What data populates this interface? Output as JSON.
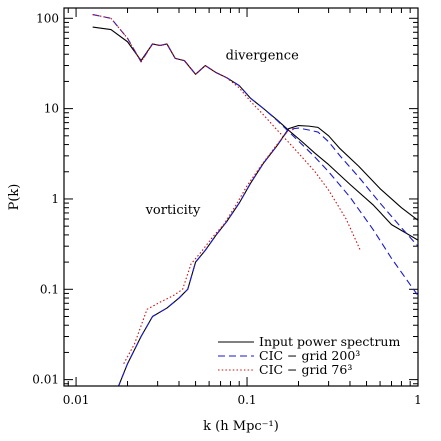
{
  "chart_data": {
    "type": "line",
    "title": "",
    "xlabel": "k (h Mpc⁻¹)",
    "ylabel": "P(k)",
    "x_scale": "log",
    "y_scale": "log",
    "xlim": [
      0.0085,
      1.0
    ],
    "ylim": [
      0.0085,
      130
    ],
    "x_ticks": [
      {
        "value": 0.01,
        "label": "0.01"
      },
      {
        "value": 0.1,
        "label": "0.1"
      },
      {
        "value": 1,
        "label": "1"
      }
    ],
    "y_ticks": [
      {
        "value": 0.01,
        "label": "0.01"
      },
      {
        "value": 0.1,
        "label": "0.1"
      },
      {
        "value": 1,
        "label": "1"
      },
      {
        "value": 10,
        "label": "10"
      },
      {
        "value": 100,
        "label": "100"
      }
    ],
    "grid": false,
    "legend_position": "bottom-right",
    "annotations": [
      {
        "text": "divergence",
        "x": 0.075,
        "y": 35
      },
      {
        "text": "vorticity",
        "x": 0.0255,
        "y": 0.68
      }
    ],
    "series": [
      {
        "name": "Input power spectrum",
        "component": "divergence",
        "color": "#000000",
        "dash": "solid",
        "points": [
          [
            0.0125,
            80
          ],
          [
            0.016,
            75
          ],
          [
            0.02,
            55
          ],
          [
            0.024,
            34
          ],
          [
            0.028,
            52
          ],
          [
            0.031,
            50
          ],
          [
            0.034,
            52
          ],
          [
            0.038,
            36
          ],
          [
            0.043,
            34
          ],
          [
            0.05,
            24
          ],
          [
            0.057,
            30
          ],
          [
            0.066,
            25
          ],
          [
            0.076,
            22
          ],
          [
            0.09,
            18
          ],
          [
            0.105,
            13
          ],
          [
            0.125,
            10
          ],
          [
            0.15,
            7.5
          ],
          [
            0.18,
            5.5
          ],
          [
            0.21,
            4.3
          ],
          [
            0.25,
            3.2
          ],
          [
            0.3,
            2.4
          ],
          [
            0.4,
            1.45
          ],
          [
            0.55,
            0.85
          ],
          [
            0.7,
            0.52
          ],
          [
            1.0,
            0.35
          ]
        ]
      },
      {
        "name": "CIC - grid 200³",
        "component": "divergence",
        "color": "#1a1acd",
        "dash": "dashed",
        "points": [
          [
            0.0125,
            110
          ],
          [
            0.016,
            100
          ],
          [
            0.02,
            60
          ],
          [
            0.024,
            33
          ],
          [
            0.028,
            52
          ],
          [
            0.031,
            50
          ],
          [
            0.034,
            52
          ],
          [
            0.038,
            36
          ],
          [
            0.043,
            34
          ],
          [
            0.05,
            24
          ],
          [
            0.057,
            30
          ],
          [
            0.066,
            25
          ],
          [
            0.076,
            22
          ],
          [
            0.09,
            18
          ],
          [
            0.105,
            13
          ],
          [
            0.125,
            10
          ],
          [
            0.15,
            7.4
          ],
          [
            0.18,
            5.3
          ],
          [
            0.21,
            4.0
          ],
          [
            0.25,
            2.9
          ],
          [
            0.3,
            2.0
          ],
          [
            0.4,
            1.05
          ],
          [
            0.55,
            0.45
          ],
          [
            0.7,
            0.22
          ],
          [
            1.0,
            0.085
          ]
        ]
      },
      {
        "name": "CIC - grid 76³",
        "component": "divergence",
        "color": "#cc1111",
        "dash": "dotted",
        "points": [
          [
            0.0125,
            110
          ],
          [
            0.016,
            100
          ],
          [
            0.02,
            60
          ],
          [
            0.024,
            33
          ],
          [
            0.028,
            52
          ],
          [
            0.031,
            50
          ],
          [
            0.034,
            52
          ],
          [
            0.038,
            36
          ],
          [
            0.043,
            34
          ],
          [
            0.05,
            24
          ],
          [
            0.057,
            30
          ],
          [
            0.066,
            25
          ],
          [
            0.076,
            22
          ],
          [
            0.09,
            17
          ],
          [
            0.105,
            12
          ],
          [
            0.125,
            8.5
          ],
          [
            0.15,
            5.8
          ],
          [
            0.18,
            4.0
          ],
          [
            0.21,
            2.9
          ],
          [
            0.25,
            2.0
          ],
          [
            0.3,
            1.25
          ],
          [
            0.38,
            0.6
          ],
          [
            0.46,
            0.27
          ]
        ]
      },
      {
        "name": "Input power spectrum",
        "component": "vorticity",
        "color": "#000000",
        "dash": "solid",
        "points": [
          [
            0.0175,
            0.008
          ],
          [
            0.02,
            0.015
          ],
          [
            0.024,
            0.03
          ],
          [
            0.028,
            0.05
          ],
          [
            0.034,
            0.062
          ],
          [
            0.04,
            0.08
          ],
          [
            0.045,
            0.1
          ],
          [
            0.05,
            0.2
          ],
          [
            0.057,
            0.27
          ],
          [
            0.066,
            0.4
          ],
          [
            0.076,
            0.56
          ],
          [
            0.09,
            0.9
          ],
          [
            0.105,
            1.5
          ],
          [
            0.125,
            2.5
          ],
          [
            0.15,
            3.9
          ],
          [
            0.175,
            6.0
          ],
          [
            0.2,
            6.5
          ],
          [
            0.23,
            6.4
          ],
          [
            0.26,
            6.2
          ],
          [
            0.3,
            5.0
          ],
          [
            0.35,
            3.6
          ],
          [
            0.45,
            2.3
          ],
          [
            0.6,
            1.3
          ],
          [
            0.8,
            0.8
          ],
          [
            1.0,
            0.58
          ]
        ]
      },
      {
        "name": "CIC - grid 200³",
        "component": "vorticity",
        "color": "#1a1acd",
        "dash": "dashed",
        "points": [
          [
            0.0175,
            0.008
          ],
          [
            0.02,
            0.015
          ],
          [
            0.024,
            0.03
          ],
          [
            0.028,
            0.05
          ],
          [
            0.034,
            0.062
          ],
          [
            0.04,
            0.08
          ],
          [
            0.045,
            0.1
          ],
          [
            0.05,
            0.2
          ],
          [
            0.057,
            0.27
          ],
          [
            0.066,
            0.4
          ],
          [
            0.076,
            0.56
          ],
          [
            0.09,
            0.9
          ],
          [
            0.105,
            1.5
          ],
          [
            0.125,
            2.5
          ],
          [
            0.15,
            3.9
          ],
          [
            0.175,
            5.9
          ],
          [
            0.2,
            6.1
          ],
          [
            0.23,
            5.8
          ],
          [
            0.26,
            5.5
          ],
          [
            0.3,
            4.3
          ],
          [
            0.35,
            3.0
          ],
          [
            0.45,
            1.75
          ],
          [
            0.6,
            0.9
          ],
          [
            0.8,
            0.48
          ],
          [
            1.0,
            0.3
          ]
        ]
      },
      {
        "name": "CIC - grid 76³",
        "component": "vorticity",
        "color": "#cc1111",
        "dash": "dotted",
        "points": [
          [
            0.019,
            0.015
          ],
          [
            0.022,
            0.025
          ],
          [
            0.026,
            0.06
          ],
          [
            0.031,
            0.072
          ],
          [
            0.037,
            0.085
          ],
          [
            0.042,
            0.1
          ],
          [
            0.047,
            0.19
          ],
          [
            0.054,
            0.26
          ],
          [
            0.063,
            0.38
          ],
          [
            0.073,
            0.52
          ],
          [
            0.086,
            0.85
          ],
          [
            0.1,
            1.4
          ],
          [
            0.12,
            2.3
          ],
          [
            0.145,
            3.7
          ],
          [
            0.17,
            5.4
          ],
          [
            0.19,
            6.0
          ]
        ]
      }
    ]
  },
  "legend": {
    "entries": [
      {
        "label": "Input power spectrum",
        "color": "#000000",
        "dash": "solid"
      },
      {
        "label": "CIC − grid 200³",
        "color": "#1a1acd",
        "dash": "dashed"
      },
      {
        "label": "CIC − grid 76³",
        "color": "#cc1111",
        "dash": "dotted"
      }
    ]
  }
}
